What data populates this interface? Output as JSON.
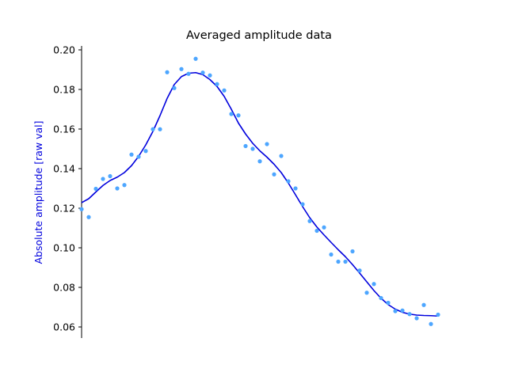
{
  "chart_data": {
    "type": "scatter",
    "title": "Averaged amplitude data",
    "xlabel": "",
    "ylabel": "Absolute amplitude [raw val]",
    "ylim": [
      0.055,
      0.202
    ],
    "xlim": [
      0,
      50
    ],
    "yticks": [
      "0.06",
      "0.08",
      "0.10",
      "0.12",
      "0.14",
      "0.16",
      "0.18",
      "0.20"
    ],
    "ytick_values": [
      0.06,
      0.08,
      0.1,
      0.12,
      0.14,
      0.16,
      0.18,
      0.2
    ],
    "grid": false,
    "x_axis_visible": false,
    "colors": {
      "points": "#4da6ff",
      "fit_line": "#0000dd",
      "ylabel": "#0000dd",
      "axis": "#000000"
    },
    "series": [
      {
        "kind": "scatter",
        "x": [
          0,
          1,
          2,
          3,
          4,
          5,
          6,
          7,
          8,
          9,
          10,
          11,
          12,
          13,
          14,
          15,
          16,
          17,
          18,
          19,
          20,
          21,
          22,
          23,
          24,
          25,
          26,
          27,
          28,
          29,
          30,
          31,
          32,
          33,
          34,
          35,
          36,
          37,
          38,
          39,
          40,
          41,
          42,
          43,
          44,
          45,
          46,
          47,
          48,
          49,
          50
        ],
        "values": [
          0.1195,
          0.1155,
          0.1298,
          0.1348,
          0.1362,
          0.13,
          0.1317,
          0.1471,
          0.146,
          0.1489,
          0.1599,
          0.1599,
          0.1887,
          0.1807,
          0.1903,
          0.1879,
          0.1955,
          0.1885,
          0.1871,
          0.1827,
          0.1795,
          0.1676,
          0.1669,
          0.1514,
          0.15,
          0.1437,
          0.1524,
          0.1371,
          0.1464,
          0.1336,
          0.13,
          0.122,
          0.1135,
          0.1086,
          0.1103,
          0.0966,
          0.093,
          0.093,
          0.0982,
          0.0885,
          0.0773,
          0.0817,
          0.0746,
          0.0722,
          0.068,
          0.0683,
          0.0665,
          0.0644,
          0.0711,
          0.0615,
          0.0662
        ]
      },
      {
        "kind": "line",
        "x": [
          0,
          1,
          2,
          3,
          4,
          5,
          6,
          7,
          8,
          9,
          10,
          11,
          12,
          13,
          14,
          15,
          16,
          17,
          18,
          19,
          20,
          21,
          22,
          23,
          24,
          25,
          26,
          27,
          28,
          29,
          30,
          31,
          32,
          33,
          34,
          35,
          36,
          37,
          38,
          39,
          40,
          41,
          42,
          43,
          44,
          45,
          46,
          47,
          48,
          49,
          50
        ],
        "values": [
          0.1228,
          0.1248,
          0.1282,
          0.1315,
          0.134,
          0.1357,
          0.138,
          0.1415,
          0.1462,
          0.152,
          0.1588,
          0.1668,
          0.1755,
          0.1825,
          0.1865,
          0.1882,
          0.1885,
          0.1875,
          0.185,
          0.1815,
          0.1765,
          0.17,
          0.163,
          0.1575,
          0.1528,
          0.149,
          0.1458,
          0.1422,
          0.138,
          0.1327,
          0.1268,
          0.1208,
          0.1152,
          0.1105,
          0.1065,
          0.1027,
          0.099,
          0.0955,
          0.0915,
          0.0872,
          0.0828,
          0.0784,
          0.0745,
          0.0713,
          0.069,
          0.0674,
          0.0665,
          0.066,
          0.0658,
          0.0657,
          0.0655
        ]
      }
    ]
  }
}
